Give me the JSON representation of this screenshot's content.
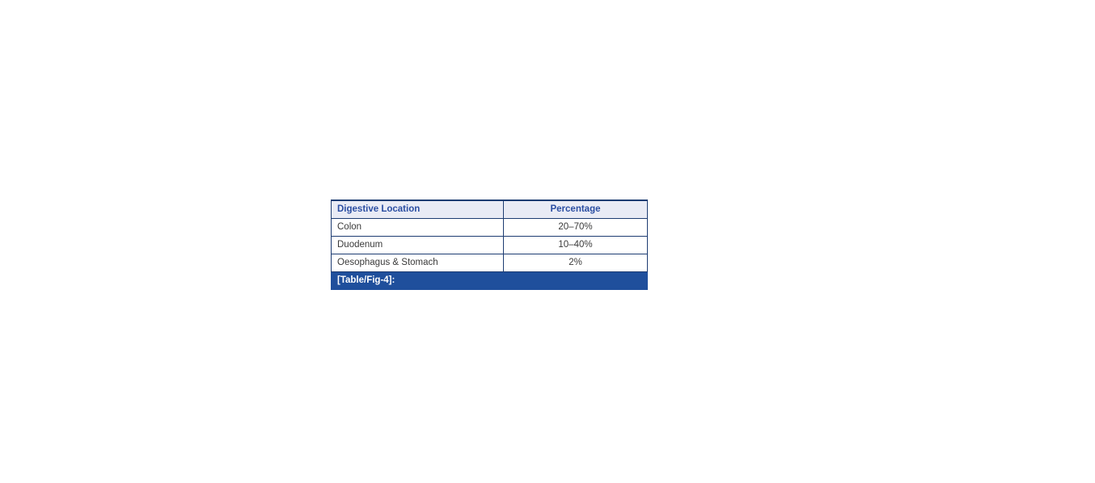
{
  "figure_table": {
    "columns": {
      "location": "Digestive Location",
      "percentage": "Percentage"
    },
    "rows": [
      {
        "location": "Colon",
        "percentage": "20–70%"
      },
      {
        "location": "Duodenum",
        "percentage": "10–40%"
      },
      {
        "location": "Oesophagus & Stomach",
        "percentage": "2%"
      }
    ],
    "caption": "[Table/Fig-4]:"
  },
  "chart_data": {
    "type": "table",
    "title": "[Table/Fig-4]:",
    "categories": [
      "Colon",
      "Duodenum",
      "Oesophagus & Stomach"
    ],
    "values": [
      "20–70%",
      "10–40%",
      "2%"
    ],
    "columns": [
      "Digestive Location",
      "Percentage"
    ]
  },
  "colors": {
    "header_bg": "#e9ebf5",
    "header_text": "#2b4ea2",
    "border": "#1d3c72",
    "caption_bg": "#1f4f9c",
    "caption_text": "#ffffff",
    "body_text": "#3a3a3a",
    "page_bg": "#ffffff"
  }
}
